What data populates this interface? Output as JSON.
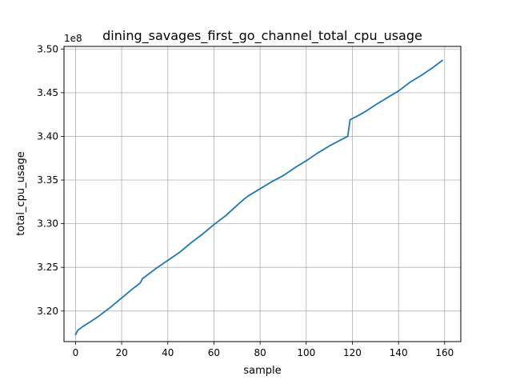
{
  "chart_data": {
    "type": "line",
    "title": "dining_savages_first_go_channel_total_cpu_usage",
    "xlabel": "sample",
    "ylabel": "total_cpu_usage",
    "y_offset_label": "1e8",
    "y_scale": 100000000.0,
    "xlim": [
      -5,
      167
    ],
    "ylim": [
      3.165,
      3.503
    ],
    "x_ticks": [
      0,
      20,
      40,
      60,
      80,
      100,
      120,
      140,
      160
    ],
    "x_tick_labels": [
      "0",
      "20",
      "40",
      "60",
      "80",
      "100",
      "120",
      "140",
      "160"
    ],
    "y_ticks": [
      3.2,
      3.25,
      3.3,
      3.35,
      3.4,
      3.45,
      3.5
    ],
    "y_tick_labels": [
      "3.20",
      "3.25",
      "3.30",
      "3.35",
      "3.40",
      "3.45",
      "3.50"
    ],
    "grid": true,
    "series": [
      {
        "color": "#1f77b4",
        "points": [
          [
            0,
            3.173
          ],
          [
            1,
            3.178
          ],
          [
            3,
            3.182
          ],
          [
            6,
            3.187
          ],
          [
            10,
            3.194
          ],
          [
            15,
            3.204
          ],
          [
            20,
            3.215
          ],
          [
            25,
            3.226
          ],
          [
            28,
            3.232
          ],
          [
            29,
            3.237
          ],
          [
            32,
            3.243
          ],
          [
            35,
            3.249
          ],
          [
            40,
            3.258
          ],
          [
            45,
            3.267
          ],
          [
            50,
            3.278
          ],
          [
            55,
            3.288
          ],
          [
            60,
            3.299
          ],
          [
            65,
            3.309
          ],
          [
            70,
            3.321
          ],
          [
            73,
            3.328
          ],
          [
            75,
            3.332
          ],
          [
            80,
            3.34
          ],
          [
            85,
            3.348
          ],
          [
            90,
            3.355
          ],
          [
            95,
            3.364
          ],
          [
            100,
            3.372
          ],
          [
            105,
            3.381
          ],
          [
            110,
            3.389
          ],
          [
            115,
            3.396
          ],
          [
            118,
            3.4
          ],
          [
            119,
            3.419
          ],
          [
            122,
            3.423
          ],
          [
            126,
            3.429
          ],
          [
            130,
            3.436
          ],
          [
            135,
            3.444
          ],
          [
            140,
            3.452
          ],
          [
            145,
            3.462
          ],
          [
            150,
            3.47
          ],
          [
            155,
            3.479
          ],
          [
            159,
            3.487
          ]
        ]
      }
    ]
  }
}
